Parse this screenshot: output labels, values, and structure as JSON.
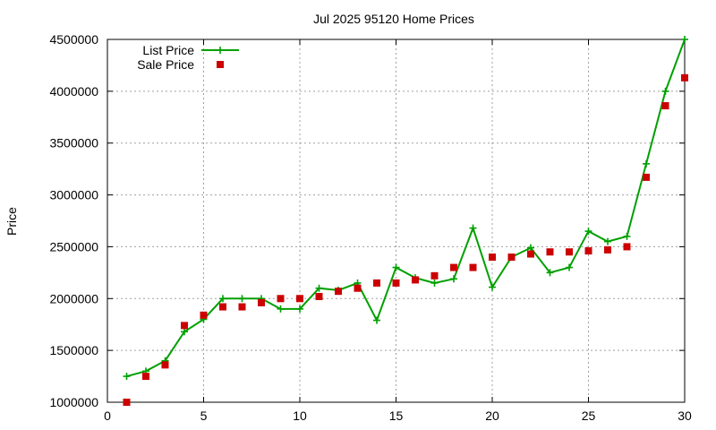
{
  "chart_data": {
    "type": "line",
    "title": "Jul 2025 95120 Home Prices",
    "xlabel": "",
    "ylabel": "Price",
    "xlim": [
      0,
      30
    ],
    "ylim": [
      1000000,
      4500000
    ],
    "x_ticks": [
      0,
      5,
      10,
      15,
      20,
      25,
      30
    ],
    "y_ticks": [
      1000000,
      1500000,
      2000000,
      2500000,
      3000000,
      3500000,
      4000000,
      4500000
    ],
    "grid": true,
    "legend_position": "top-left",
    "series": [
      {
        "name": "List Price",
        "style": "line-plus",
        "color": "#00a000",
        "x": [
          1,
          2,
          3,
          4,
          5,
          6,
          7,
          8,
          9,
          10,
          11,
          12,
          13,
          14,
          15,
          16,
          17,
          18,
          19,
          20,
          21,
          22,
          23,
          24,
          25,
          26,
          27,
          28,
          29,
          30
        ],
        "y": [
          1250000,
          1300000,
          1400000,
          1680000,
          1800000,
          2000000,
          2000000,
          2000000,
          1900000,
          1900000,
          2100000,
          2080000,
          2150000,
          1790000,
          2300000,
          2200000,
          2150000,
          2190000,
          2680000,
          2110000,
          2400000,
          2490000,
          2250000,
          2300000,
          2650000,
          2550000,
          2600000,
          3300000,
          4000000,
          4500000
        ]
      },
      {
        "name": "Sale Price",
        "style": "square",
        "color": "#cc0000",
        "x": [
          1,
          2,
          3,
          4,
          5,
          6,
          7,
          8,
          9,
          10,
          11,
          12,
          13,
          14,
          15,
          16,
          17,
          18,
          19,
          20,
          21,
          22,
          23,
          24,
          25,
          26,
          27,
          28,
          29,
          30
        ],
        "y": [
          1000000,
          1250000,
          1360000,
          1740000,
          1840000,
          1920000,
          1920000,
          1960000,
          2000000,
          2000000,
          2020000,
          2070000,
          2100000,
          2150000,
          2150000,
          2180000,
          2220000,
          2300000,
          2300000,
          2400000,
          2400000,
          2430000,
          2450000,
          2450000,
          2460000,
          2470000,
          2500000,
          3170000,
          3860000,
          4130000
        ]
      }
    ]
  }
}
